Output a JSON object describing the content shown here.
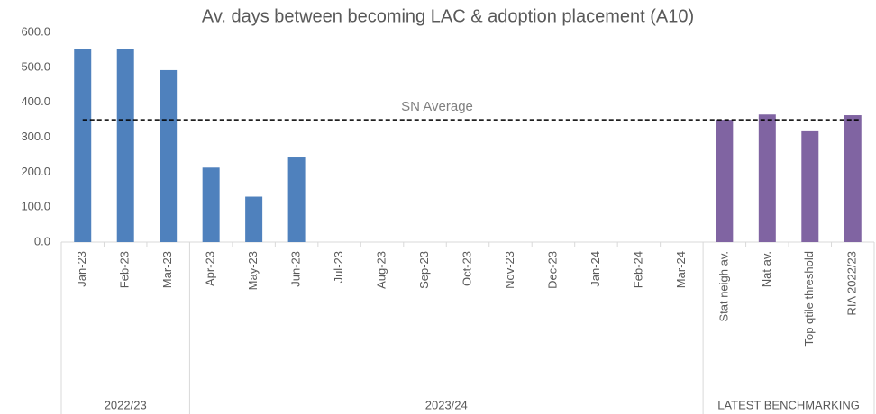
{
  "chart_data": {
    "type": "bar",
    "title": "Av. days between becoming LAC & adoption placement (A10)",
    "groups": [
      {
        "label": "2022/23",
        "color": "#4f81bd",
        "categories": [
          "Jan-23",
          "Feb-23",
          "Mar-23"
        ],
        "values": [
          552,
          552,
          492
        ]
      },
      {
        "label": "2023/24",
        "color": "#4f81bd",
        "categories": [
          "Apr-23",
          "May-23",
          "Jun-23",
          "Jul-23",
          "Aug-23",
          "Sep-23",
          "Oct-23",
          "Nov-23",
          "Dec-23",
          "Jan-24",
          "Feb-24",
          "Mar-24"
        ],
        "values": [
          213,
          130,
          242,
          null,
          null,
          null,
          null,
          null,
          null,
          null,
          null,
          null
        ]
      },
      {
        "label": "LATEST BENCHMARKING",
        "color": "#8064a2",
        "categories": [
          "Stat neigh av.",
          "Nat av.",
          "Top qtile threshold",
          "RIA 2022/23"
        ],
        "values": [
          350,
          365,
          317,
          363
        ]
      }
    ],
    "reference_line": {
      "label": "SN Average",
      "value": 350
    },
    "ylim": [
      0,
      600
    ],
    "yticks": [
      {
        "value": 0,
        "label": "0.0"
      },
      {
        "value": 100,
        "label": "100.0"
      },
      {
        "value": 200,
        "label": "200.0"
      },
      {
        "value": 300,
        "label": "300.0"
      },
      {
        "value": 400,
        "label": "400.0"
      },
      {
        "value": 500,
        "label": "500.0"
      },
      {
        "value": 600,
        "label": "600.0"
      }
    ],
    "grid": false
  }
}
